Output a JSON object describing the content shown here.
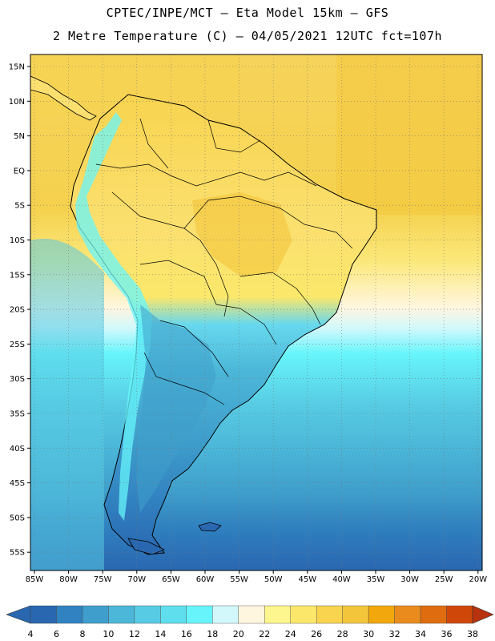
{
  "header": {
    "line1": "CPTEC/INPE/MCT –  Eta Model 15km – GFS",
    "line2": "2 Metre Temperature (C) – 04/05/2021 12UTC fct=107h"
  },
  "map": {
    "lat_labels": [
      "15N",
      "10N",
      "5N",
      "EQ",
      "5S",
      "10S",
      "15S",
      "20S",
      "25S",
      "30S",
      "35S",
      "40S",
      "45S",
      "50S",
      "55S"
    ],
    "lon_labels": [
      "85W",
      "80W",
      "75W",
      "70W",
      "65W",
      "60W",
      "55W",
      "50W",
      "45W",
      "40W",
      "35W",
      "30W",
      "25W",
      "20W"
    ]
  },
  "colorbar": {
    "labels": [
      "4",
      "6",
      "8",
      "10",
      "12",
      "14",
      "16",
      "18",
      "20",
      "22",
      "24",
      "26",
      "28",
      "30",
      "32",
      "34",
      "36",
      "38"
    ],
    "colors": [
      "#2a67b1",
      "#3182c1",
      "#3f9ecb",
      "#4cb7d8",
      "#57cbe3",
      "#5fdfee",
      "#67f5fb",
      "#d2f8fb",
      "#fff6df",
      "#fdf58d",
      "#fbe86b",
      "#f8d44f",
      "#f3c53a",
      "#f2a80c",
      "#ea8b1d",
      "#df6d10",
      "#cf480a",
      "#b7320d"
    ]
  }
}
